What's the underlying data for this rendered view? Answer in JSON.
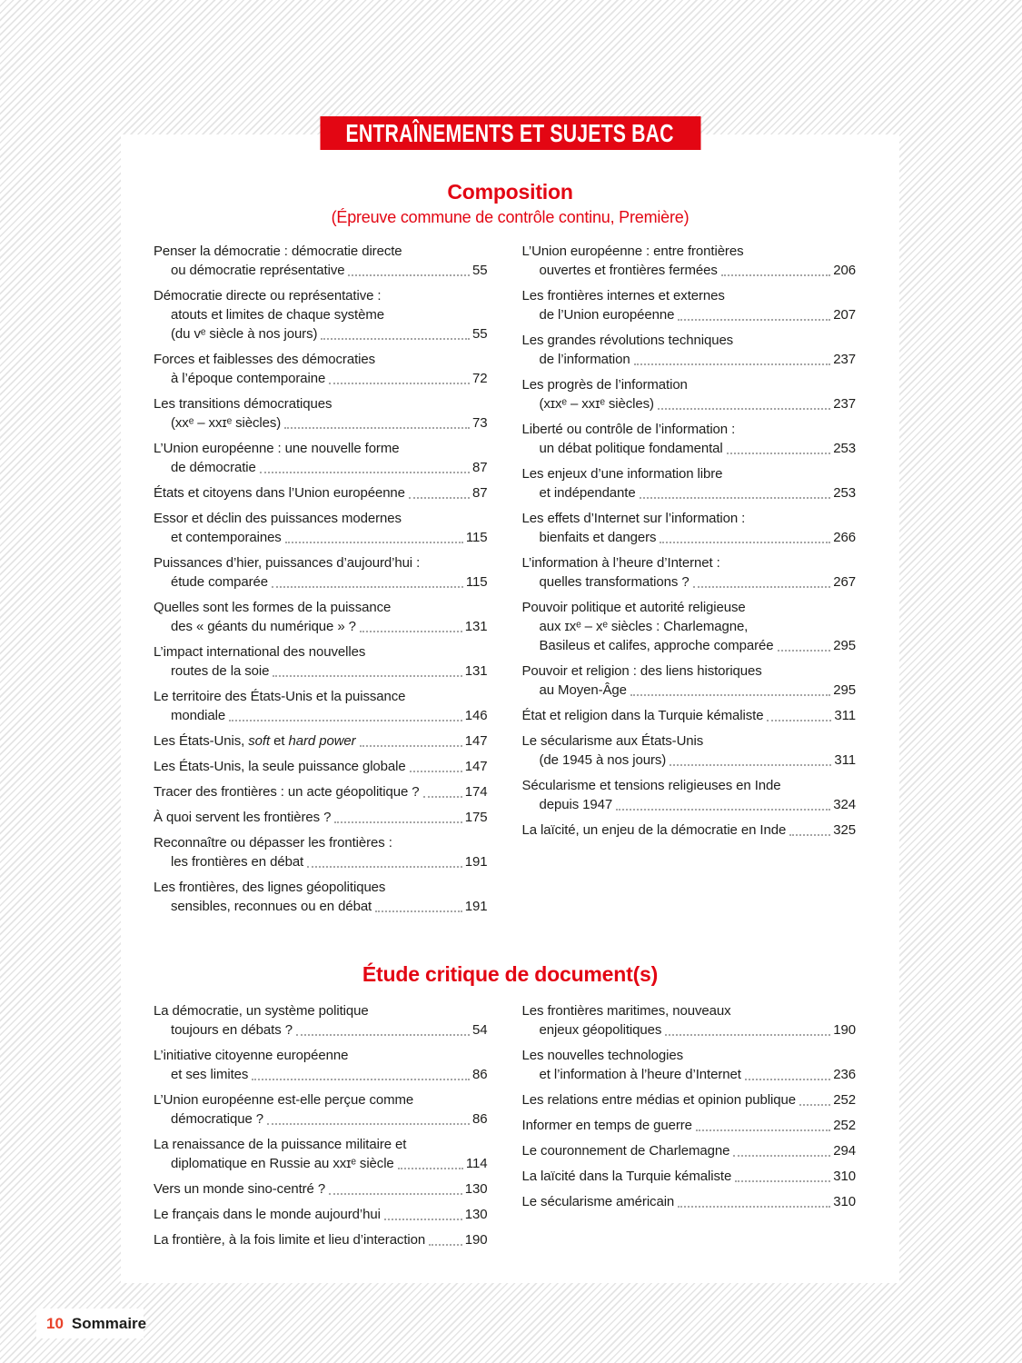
{
  "banner": {
    "label": "ENTRAÎNEMENTS ET SUJETS BAC"
  },
  "colors": {
    "accent_red": "#e30613",
    "footer_number_red": "#e8432b",
    "body_text": "#1d1d1b"
  },
  "sections": [
    {
      "title": "Composition",
      "subtitle": "(Épreuve commune de contrôle continu, Première)",
      "columns": [
        [
          {
            "lines": [
              "Penser la démocratie : démocratie directe",
              "ou démocratie représentative"
            ],
            "page": "55"
          },
          {
            "lines": [
              "Démocratie directe ou représentative :",
              "atouts et limites de chaque système",
              "(du ᴠᵉ siècle à nos jours)"
            ],
            "page": "55"
          },
          {
            "lines": [
              "Forces et faiblesses des démocraties",
              "à l’époque contemporaine"
            ],
            "page": "72"
          },
          {
            "lines": [
              "Les transitions démocratiques",
              "(xxᵉ – xxɪᵉ siècles)"
            ],
            "page": "73"
          },
          {
            "lines": [
              "L’Union européenne : une nouvelle forme",
              "de démocratie"
            ],
            "page": "87"
          },
          {
            "lines": [
              "États et citoyens dans l’Union européenne"
            ],
            "page": "87"
          },
          {
            "lines": [
              "Essor et déclin des puissances modernes",
              "et contemporaines"
            ],
            "page": "115"
          },
          {
            "lines": [
              "Puissances d’hier, puissances d’aujourd’hui :",
              "étude comparée"
            ],
            "page": "115"
          },
          {
            "lines": [
              "Quelles sont les formes de la puissance",
              "des « géants du numérique » ?"
            ],
            "page": "131"
          },
          {
            "lines": [
              "L’impact international des nouvelles",
              "routes de la soie"
            ],
            "page": "131"
          },
          {
            "lines": [
              "Le territoire des États-Unis et la puissance",
              "mondiale"
            ],
            "page": "146"
          },
          {
            "lines": [
              {
                "segments": [
                  {
                    "t": "Les États-Unis, "
                  },
                  {
                    "t": "soft",
                    "i": true
                  },
                  {
                    "t": " et "
                  },
                  {
                    "t": "hard power",
                    "i": true
                  }
                ]
              }
            ],
            "page": "147"
          },
          {
            "lines": [
              "Les États-Unis, la seule puissance globale"
            ],
            "page": "147"
          },
          {
            "lines": [
              "Tracer des frontières : un acte géopolitique ?"
            ],
            "page": "174"
          },
          {
            "lines": [
              "À quoi servent les frontières ?"
            ],
            "page": "175"
          },
          {
            "lines": [
              "Reconnaître ou dépasser les frontières :",
              "les frontières en débat"
            ],
            "page": "191"
          },
          {
            "lines": [
              "Les frontières, des lignes géopolitiques",
              "sensibles, reconnues ou en débat"
            ],
            "page": "191"
          }
        ],
        [
          {
            "lines": [
              "L’Union européenne : entre frontières",
              "ouvertes et frontières fermées"
            ],
            "page": "206"
          },
          {
            "lines": [
              "Les frontières internes et externes",
              "de l’Union européenne"
            ],
            "page": "207"
          },
          {
            "lines": [
              "Les grandes révolutions techniques",
              "de l’information"
            ],
            "page": "237"
          },
          {
            "lines": [
              "Les progrès de l’information",
              "(xɪxᵉ – xxɪᵉ siècles)"
            ],
            "page": "237"
          },
          {
            "lines": [
              "Liberté ou contrôle de l’information :",
              "un débat politique fondamental"
            ],
            "page": "253"
          },
          {
            "lines": [
              "Les enjeux d’une information libre",
              "et indépendante"
            ],
            "page": "253"
          },
          {
            "lines": [
              "Les effets d’Internet sur l’information :",
              "bienfaits et dangers"
            ],
            "page": "266"
          },
          {
            "lines": [
              "L’information à l’heure d’Internet :",
              "quelles transformations ?"
            ],
            "page": "267"
          },
          {
            "lines": [
              "Pouvoir politique et autorité religieuse",
              "aux ɪxᵉ – xᵉ siècles : Charlemagne,",
              "Basileus et califes, approche comparée"
            ],
            "page": "295"
          },
          {
            "lines": [
              "Pouvoir et religion : des liens historiques",
              "au Moyen-Âge"
            ],
            "page": "295"
          },
          {
            "lines": [
              "État et religion dans la Turquie kémaliste"
            ],
            "page": "311"
          },
          {
            "lines": [
              "Le sécularisme aux États-Unis",
              "(de 1945 à nos jours)"
            ],
            "page": "311"
          },
          {
            "lines": [
              "Sécularisme et tensions religieuses en Inde",
              "depuis 1947"
            ],
            "page": "324"
          },
          {
            "lines": [
              "La laïcité, un enjeu de la démocratie en Inde"
            ],
            "page": "325"
          }
        ]
      ]
    },
    {
      "title": "Étude critique de document(s)",
      "subtitle": "",
      "columns": [
        [
          {
            "lines": [
              "La démocratie, un système politique",
              "toujours en débats ?"
            ],
            "page": "54"
          },
          {
            "lines": [
              "L’initiative citoyenne européenne",
              "et ses limites"
            ],
            "page": "86"
          },
          {
            "lines": [
              "L’Union européenne est-elle perçue comme",
              "démocratique ?"
            ],
            "page": "86"
          },
          {
            "lines": [
              "La renaissance de la puissance militaire et",
              "diplomatique en Russie au xxɪᵉ siècle"
            ],
            "page": "114"
          },
          {
            "lines": [
              "Vers un monde sino-centré ?"
            ],
            "page": "130"
          },
          {
            "lines": [
              "Le français dans le monde aujourd’hui"
            ],
            "page": "130"
          },
          {
            "lines": [
              "La frontière, à la fois limite et lieu d’interaction"
            ],
            "page": "190"
          }
        ],
        [
          {
            "lines": [
              "Les frontières maritimes, nouveaux",
              "enjeux géopolitiques"
            ],
            "page": "190"
          },
          {
            "lines": [
              "Les nouvelles technologies",
              "et l’information à l’heure d’Internet"
            ],
            "page": "236"
          },
          {
            "lines": [
              "Les relations entre médias et opinion publique"
            ],
            "page": "252"
          },
          {
            "lines": [
              "Informer en temps de guerre"
            ],
            "page": "252"
          },
          {
            "lines": [
              "Le couronnement de Charlemagne"
            ],
            "page": "294"
          },
          {
            "lines": [
              "La laïcité dans la Turquie kémaliste"
            ],
            "page": "310"
          },
          {
            "lines": [
              "Le sécularisme américain"
            ],
            "page": "310"
          }
        ]
      ]
    }
  ],
  "footer": {
    "page_number": "10",
    "label": "Sommaire"
  }
}
